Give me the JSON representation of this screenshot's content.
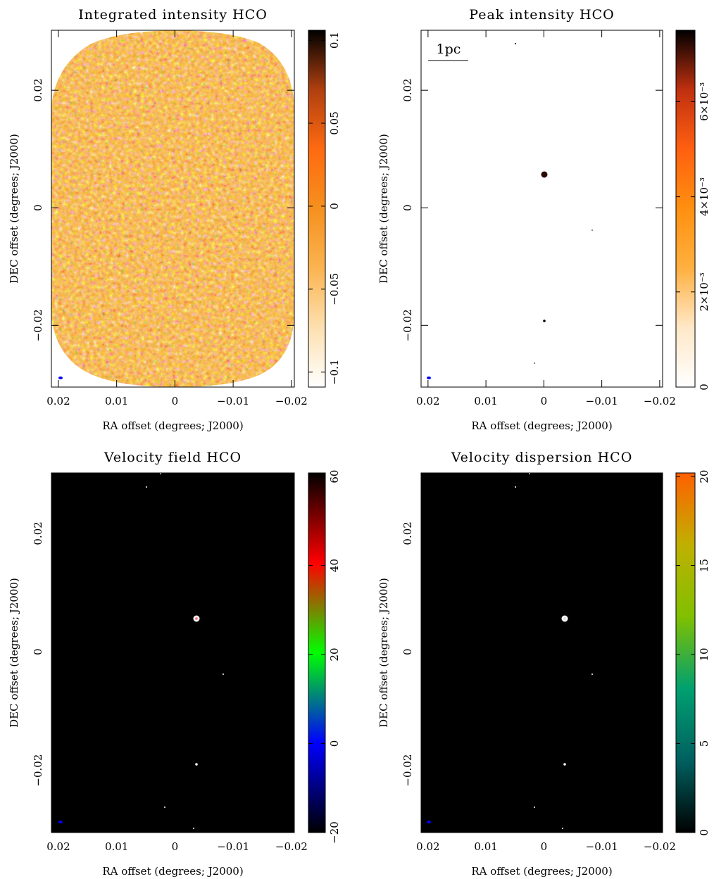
{
  "chart_data": [
    {
      "type": "image",
      "title": "Integrated intensity HCO",
      "x_label": "RA offset (degrees; J2000)",
      "y_label": "DEC offset (degrees; J2000)",
      "xlim": [
        0.0212,
        -0.0205
      ],
      "ylim": [
        -0.0305,
        0.0302
      ],
      "xticks": [
        0.02,
        0.01,
        0,
        {
          "value": -0.01,
          "label": "−0.01"
        },
        {
          "value": -0.02,
          "label": "−0.02"
        }
      ],
      "yticks": [
        {
          "value": -0.02,
          "label": "−0.02"
        },
        0,
        0.02
      ],
      "colorbar": {
        "lim": [
          -0.109,
          0.106
        ],
        "ticks": [
          {
            "value": -0.1,
            "label": "−0.1"
          },
          {
            "value": -0.05,
            "label": "−0.05"
          },
          0,
          0.05,
          0.1
        ],
        "colormap": [
          "#ffffff",
          "#fde0b0",
          "#fbb450",
          "#f5901e",
          "#ff6a10",
          "#b04010",
          "#000000"
        ]
      }
    },
    {
      "type": "image",
      "title": "Peak intensity HCO",
      "x_label": "RA offset (degrees; J2000)",
      "y_label": "DEC offset (degrees; J2000)",
      "annotation": "1pc",
      "xlim": [
        0.0212,
        -0.0205
      ],
      "ylim": [
        -0.0305,
        0.0302
      ],
      "xticks": [
        0.02,
        0.01,
        0,
        {
          "value": -0.01,
          "label": "−0.01"
        },
        {
          "value": -0.02,
          "label": "−0.02"
        }
      ],
      "yticks": [
        {
          "value": -0.02,
          "label": "−0.02"
        },
        0,
        0.02
      ],
      "colorbar": {
        "lim": [
          0,
          0.0075
        ],
        "ticks": [
          0,
          {
            "value": 0.002,
            "label": "2×10⁻³"
          },
          {
            "value": 0.004,
            "label": "4×10⁻³"
          },
          {
            "value": 0.006,
            "label": "6×10⁻³"
          }
        ],
        "colormap": [
          "#ffffff",
          "#ffe8c8",
          "#ffb040",
          "#ff9010",
          "#ff6010",
          "#c03010",
          "#000000"
        ]
      }
    },
    {
      "type": "image",
      "title": "Velocity field HCO",
      "x_label": "RA offset (degrees; J2000)",
      "y_label": "DEC offset (degrees; J2000)",
      "xlim": [
        0.0212,
        -0.0205
      ],
      "ylim": [
        -0.0305,
        0.0302
      ],
      "xticks": [
        0.02,
        0.01,
        0,
        {
          "value": -0.01,
          "label": "−0.01"
        },
        {
          "value": -0.02,
          "label": "−0.02"
        }
      ],
      "yticks": [
        {
          "value": -0.02,
          "label": "−0.02"
        },
        0,
        0.02
      ],
      "colorbar": {
        "lim": [
          -20,
          60.8
        ],
        "ticks": [
          {
            "value": -20,
            "label": "−20"
          },
          0,
          20,
          40,
          60
        ],
        "colormap": [
          "#000000",
          "#0000ff",
          "#00ff00",
          "#ff0000",
          "#000000"
        ]
      }
    },
    {
      "type": "image",
      "title": "Velocity dispersion HCO",
      "x_label": "RA offset (degrees; J2000)",
      "y_label": "DEC offset (degrees; J2000)",
      "xlim": [
        0.0212,
        -0.0205
      ],
      "ylim": [
        -0.0305,
        0.0302
      ],
      "xticks": [
        0.02,
        0.01,
        0,
        {
          "value": -0.01,
          "label": "−0.01"
        },
        {
          "value": -0.02,
          "label": "−0.02"
        }
      ],
      "yticks": [
        {
          "value": -0.02,
          "label": "−0.02"
        },
        0,
        0.02
      ],
      "colorbar": {
        "lim": [
          0,
          20.2
        ],
        "ticks": [
          0,
          5,
          10,
          15,
          20
        ],
        "colormap": [
          "#000000",
          "#006060",
          "#00a070",
          "#80c000",
          "#c0b000",
          "#ff6000"
        ]
      }
    }
  ]
}
